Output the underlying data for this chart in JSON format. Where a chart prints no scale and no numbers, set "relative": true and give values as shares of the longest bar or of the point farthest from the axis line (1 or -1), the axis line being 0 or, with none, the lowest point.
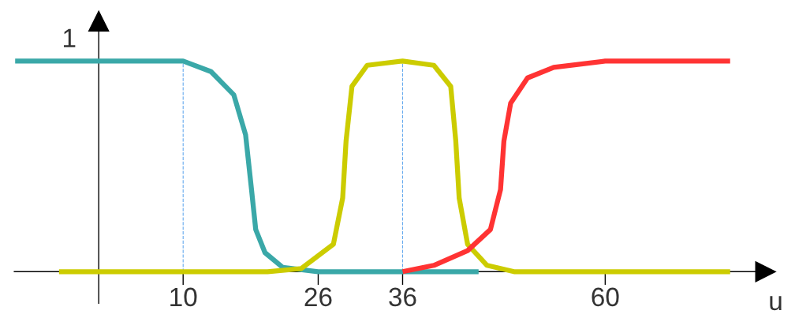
{
  "chart_data": {
    "type": "line",
    "xlabel": "u",
    "xlim": [
      -10,
      79
    ],
    "xticks": [
      10,
      26,
      36,
      60
    ],
    "relative": true,
    "annotations": [
      {
        "text": "1",
        "y": 1
      }
    ],
    "grid": false,
    "marker": "none",
    "line_style": "solid",
    "series": [
      {
        "color": "#3aa8a8",
        "x": [
          -9.9,
          10,
          13.3,
          16,
          17.4,
          18.1,
          18.6,
          19.7,
          21.8,
          26,
          45
        ],
        "values": [
          1,
          1,
          0.95,
          0.84,
          0.65,
          0.39,
          0.2,
          0.09,
          0.02,
          0,
          0
        ]
      },
      {
        "color": "#cccc00",
        "x": [
          -4.7,
          20,
          24,
          27.8,
          28.9,
          29.3,
          30,
          31.8,
          36,
          39.7,
          41.7,
          42.3,
          42.7,
          43.7,
          46,
          49.2,
          74.8
        ],
        "values": [
          0,
          0,
          0.015,
          0.13,
          0.35,
          0.62,
          0.88,
          0.98,
          1,
          0.98,
          0.88,
          0.62,
          0.35,
          0.13,
          0.03,
          0,
          0
        ]
      },
      {
        "color": "#ff3333",
        "x": [
          36,
          39.7,
          43.7,
          46.4,
          47.6,
          48,
          48.8,
          50.8,
          53.9,
          60,
          74.8
        ],
        "values": [
          0,
          0.03,
          0.1,
          0.2,
          0.39,
          0.62,
          0.8,
          0.92,
          0.97,
          1,
          1
        ]
      }
    ],
    "ref_lines": [
      {
        "axis": "x",
        "value": 10,
        "color": "#66aaee",
        "line_style": "dashed"
      },
      {
        "axis": "x",
        "value": 36,
        "color": "#66aaee",
        "line_style": "dashed"
      }
    ]
  }
}
